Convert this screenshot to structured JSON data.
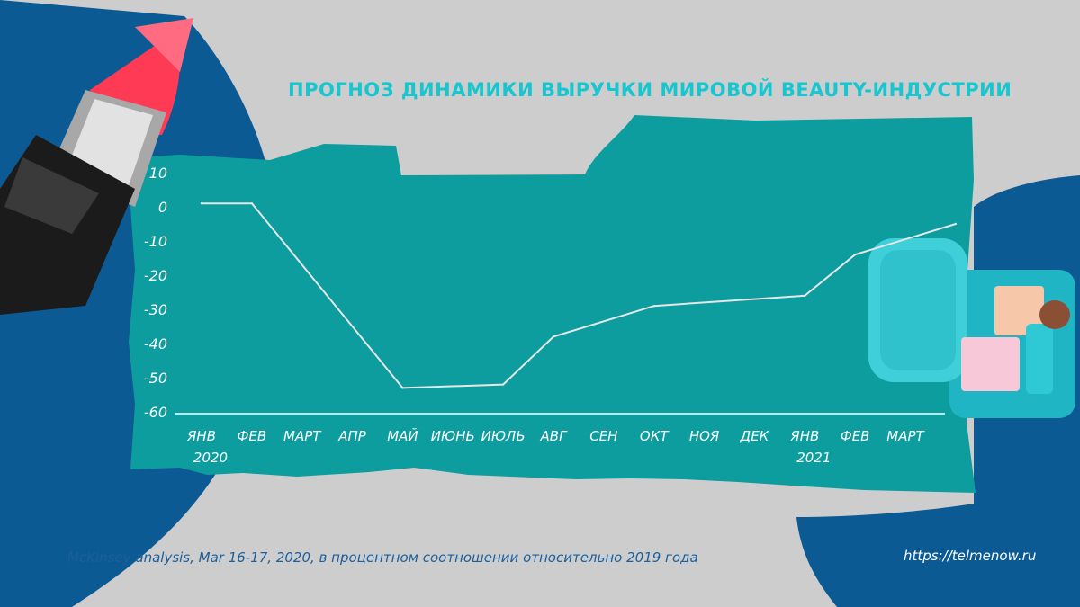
{
  "title": "ПРОГНОЗ ДИНАМИКИ ВЫРУЧКИ МИРОВОЙ BEAUTY-ИНДУСТРИИ",
  "source": "McKinsey analysis, Mar 16-17, 2020, в процентном соотношении относительно 2019 года",
  "site": "https://telmenow.ru",
  "colors": {
    "background": "#cdcdcd",
    "teal_panel": "#0d9d9e",
    "navy": "#0c5a93",
    "title": "#18c6cf",
    "line": "#e6e6e6"
  },
  "chart_data": {
    "type": "line",
    "title": "ПРОГНОЗ ДИНАМИКИ ВЫРУЧКИ МИРОВОЙ BEAUTY-ИНДУСТРИИ",
    "categories": [
      "ЯНВ",
      "ФЕВ",
      "МАРТ",
      "АПР",
      "МАЙ",
      "ИЮНЬ",
      "ИЮЛЬ",
      "АВГ",
      "СЕН",
      "ОКТ",
      "НОЯ",
      "ДЕК",
      "ЯНВ",
      "ФЕВ",
      "МАРТ"
    ],
    "year_labels": [
      {
        "index": 0,
        "label": "2020"
      },
      {
        "index": 12,
        "label": "2021"
      }
    ],
    "x": [
      0,
      1,
      4,
      6,
      7,
      9,
      12,
      13,
      15
    ],
    "values": [
      1,
      1,
      -53,
      -52,
      -38,
      -29,
      -26,
      -14,
      -5
    ],
    "ylim": [
      -60,
      10
    ],
    "yticks": [
      10,
      0,
      -10,
      -20,
      -30,
      -40,
      -50,
      -60
    ],
    "grid": false,
    "legend": "none",
    "xlabel": "",
    "ylabel": ""
  }
}
